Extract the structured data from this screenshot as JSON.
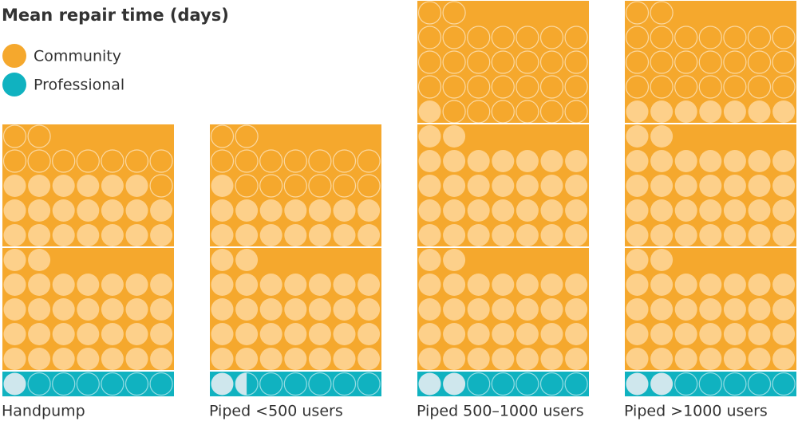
{
  "chart_data": {
    "type": "waffle",
    "title": "Mean repair time (days)",
    "categories": [
      "Handpump",
      "Piped <500 users",
      "Piped 500–1000 users",
      "Piped >1000 users"
    ],
    "series": [
      {
        "name": "Community",
        "color": "#f5a82d",
        "values": [
          50,
          45,
          61,
          67
        ]
      },
      {
        "name": "Professional",
        "color": "#10b2c0",
        "values": [
          1,
          1.5,
          2,
          2
        ]
      }
    ]
  }
}
